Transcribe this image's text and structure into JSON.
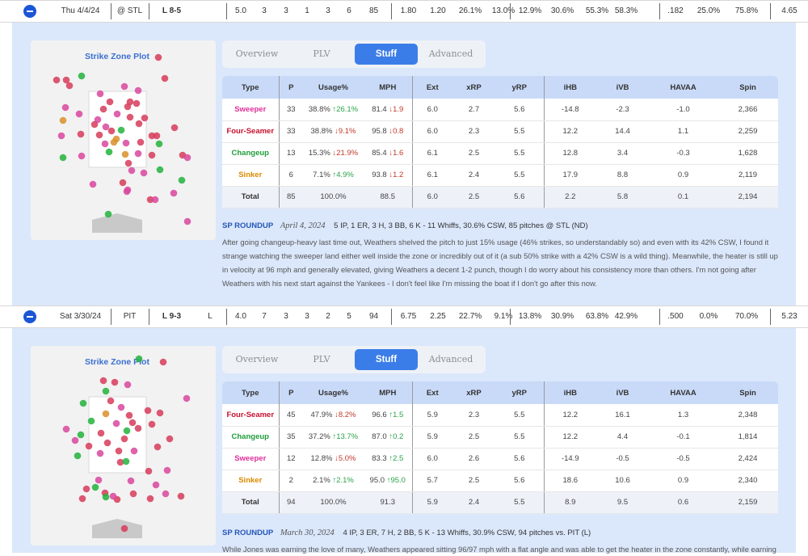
{
  "games": [
    {
      "date": "Thu 4/4/24",
      "opp": "@ STL",
      "result": "L 8-5",
      "decision": "",
      "stats": [
        "5.0",
        "3",
        "3",
        "1",
        "3",
        "6",
        "85",
        "1.80",
        "1.20",
        "26.1%",
        "13.0%",
        "12.9%",
        "30.6%",
        "55.3%",
        "58.3%",
        ".182",
        "25.0%",
        "75.8%",
        "4.65"
      ],
      "zone_title": "Strike Zone Plot",
      "tabs": [
        "Overview",
        "PLV",
        "Stuff",
        "Advanced"
      ],
      "table_headers": [
        "Type",
        "P",
        "Usage%",
        "MPH",
        "Ext",
        "xRP",
        "yRP",
        "iHB",
        "iVB",
        "HAVAA",
        "Spin"
      ],
      "pitches": [
        {
          "type": "Sweeper",
          "color": "#e0309a",
          "p": "33",
          "usage": "38.8%",
          "usage_delta": "↑26.1%",
          "usage_dir": "up",
          "mph": "81.4",
          "mph_delta": "↓1.9",
          "mph_dir": "down",
          "ext": "6.0",
          "xrp": "2.7",
          "yrp": "5.6",
          "ihb": "-14.8",
          "ivb": "-2.3",
          "havaa": "-1.0",
          "spin": "2,366"
        },
        {
          "type": "Four-Seamer",
          "color": "#c8102e",
          "p": "33",
          "usage": "38.8%",
          "usage_delta": "↓9.1%",
          "usage_dir": "down",
          "mph": "95.8",
          "mph_delta": "↓0.8",
          "mph_dir": "down",
          "ext": "6.0",
          "xrp": "2.3",
          "yrp": "5.5",
          "ihb": "12.2",
          "ivb": "14.4",
          "havaa": "1.1",
          "spin": "2,259"
        },
        {
          "type": "Changeup",
          "color": "#1e9e3a",
          "p": "13",
          "usage": "15.3%",
          "usage_delta": "↓21.9%",
          "usage_dir": "down",
          "mph": "85.4",
          "mph_delta": "↓1.6",
          "mph_dir": "down",
          "ext": "6.1",
          "xrp": "2.5",
          "yrp": "5.5",
          "ihb": "12.8",
          "ivb": "3.4",
          "havaa": "-0.3",
          "spin": "1,628"
        },
        {
          "type": "Sinker",
          "color": "#d98a00",
          "p": "6",
          "usage": "7.1%",
          "usage_delta": "↑4.9%",
          "usage_dir": "up",
          "mph": "93.8",
          "mph_delta": "↓1.2",
          "mph_dir": "down",
          "ext": "6.1",
          "xrp": "2.4",
          "yrp": "5.5",
          "ihb": "17.9",
          "ivb": "8.8",
          "havaa": "0.9",
          "spin": "2,119"
        }
      ],
      "total": {
        "type": "Total",
        "p": "85",
        "usage": "100.0%",
        "mph": "88.5",
        "ext": "6.0",
        "xrp": "2.5",
        "yrp": "5.6",
        "ihb": "2.2",
        "ivb": "5.8",
        "havaa": "0.1",
        "spin": "2,194"
      },
      "roundup": {
        "tag": "SP ROUNDUP",
        "date": "April 4, 2024",
        "line": "5 IP, 1 ER, 3 H, 3 BB, 6 K - 11 Whiffs, 30.6% CSW, 85 pitches @ STL (ND)",
        "text": "After going changeup-heavy last time out, Weathers shelved the pitch to just 15% usage (46% strikes, so understandably so) and even with its 42% CSW, I found it strange watching the sweeper land either well inside the zone or incredibly out of it (a sub 50% strike with a 42% CSW is a wild thing). Meanwhile, the heater is still up in velocity at 96 mph and generally elevated, giving Weathers a decent 1-2 punch, though I do worry about his consistency more than others. I'm not going after Weathers with his next start against the Yankees - I don't feel like I'm missing the boat if I don't go after this now."
      }
    },
    {
      "date": "Sat 3/30/24",
      "opp": "PIT",
      "result": "L 9-3",
      "decision": "L",
      "stats": [
        "4.0",
        "7",
        "3",
        "3",
        "2",
        "5",
        "94",
        "6.75",
        "2.25",
        "22.7%",
        "9.1%",
        "13.8%",
        "30.9%",
        "63.8%",
        "42.9%",
        ".500",
        "0.0%",
        "70.0%",
        "5.23"
      ],
      "zone_title": "Strike Zone Plot",
      "tabs": [
        "Overview",
        "PLV",
        "Stuff",
        "Advanced"
      ],
      "table_headers": [
        "Type",
        "P",
        "Usage%",
        "MPH",
        "Ext",
        "xRP",
        "yRP",
        "iHB",
        "iVB",
        "HAVAA",
        "Spin"
      ],
      "pitches": [
        {
          "type": "Four-Seamer",
          "color": "#c8102e",
          "p": "45",
          "usage": "47.9%",
          "usage_delta": "↓8.2%",
          "usage_dir": "down",
          "mph": "96.6",
          "mph_delta": "↑1.5",
          "mph_dir": "up",
          "ext": "5.9",
          "xrp": "2.3",
          "yrp": "5.5",
          "ihb": "12.2",
          "ivb": "16.1",
          "havaa": "1.3",
          "spin": "2,348"
        },
        {
          "type": "Changeup",
          "color": "#1e9e3a",
          "p": "35",
          "usage": "37.2%",
          "usage_delta": "↑13.7%",
          "usage_dir": "up",
          "mph": "87.0",
          "mph_delta": "↑0.2",
          "mph_dir": "up",
          "ext": "5.9",
          "xrp": "2.5",
          "yrp": "5.5",
          "ihb": "12.2",
          "ivb": "4.4",
          "havaa": "-0.1",
          "spin": "1,814"
        },
        {
          "type": "Sweeper",
          "color": "#e0309a",
          "p": "12",
          "usage": "12.8%",
          "usage_delta": "↓5.0%",
          "usage_dir": "down",
          "mph": "83.3",
          "mph_delta": "↑2.5",
          "mph_dir": "up",
          "ext": "6.0",
          "xrp": "2.6",
          "yrp": "5.6",
          "ihb": "-14.9",
          "ivb": "-0.5",
          "havaa": "-0.5",
          "spin": "2,424"
        },
        {
          "type": "Sinker",
          "color": "#d98a00",
          "p": "2",
          "usage": "2.1%",
          "usage_delta": "↑2.1%",
          "usage_dir": "up",
          "mph": "95.0",
          "mph_delta": "↑95.0",
          "mph_dir": "up",
          "ext": "5.7",
          "xrp": "2.5",
          "yrp": "5.6",
          "ihb": "18.6",
          "ivb": "10.6",
          "havaa": "0.9",
          "spin": "2,340"
        }
      ],
      "total": {
        "type": "Total",
        "p": "94",
        "usage": "100.0%",
        "mph": "91.3",
        "ext": "5.9",
        "xrp": "2.4",
        "yrp": "5.5",
        "ihb": "8.9",
        "ivb": "9.5",
        "havaa": "0.6",
        "spin": "2,159"
      },
      "roundup": {
        "tag": "SP ROUNDUP",
        "date": "March 30, 2024",
        "line": "4 IP, 3 ER, 7 H, 2 BB, 5 K - 13 Whiffs, 30.9% CSW, 94 pitches vs. PIT (L)",
        "text": "While Jones was earning the love of many, Weathers appeared sitting 96/97 mph with a flat angle and was able to get the heater in the zone constantly, while earning"
      }
    }
  ],
  "colors": {
    "accent": "#3b7de8",
    "panel_bg": "#dbe7fb",
    "header_bg": "#c9daf8",
    "sweeper": "#e0309a",
    "four_seamer": "#c8102e",
    "changeup": "#1e9e3a",
    "sinker": "#d98a00"
  }
}
